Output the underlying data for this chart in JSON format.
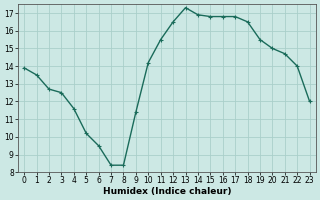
{
  "x": [
    0,
    1,
    2,
    3,
    4,
    5,
    6,
    7,
    8,
    9,
    10,
    11,
    12,
    13,
    14,
    15,
    16,
    17,
    18,
    19,
    20,
    21,
    22,
    23
  ],
  "y": [
    13.9,
    13.5,
    12.7,
    12.5,
    11.6,
    10.2,
    9.5,
    8.4,
    8.4,
    11.4,
    14.2,
    15.5,
    16.5,
    17.3,
    16.9,
    16.8,
    16.8,
    16.8,
    16.5,
    15.5,
    15.0,
    14.7,
    14.0,
    12.0
  ],
  "line_color": "#1a6b5a",
  "marker": "+",
  "marker_size": 3,
  "marker_lw": 0.8,
  "line_width": 1.0,
  "bg_color": "#cce8e4",
  "grid_color": "#aacfca",
  "xlabel": "Humidex (Indice chaleur)",
  "ylim": [
    8,
    17.5
  ],
  "xlim": [
    -0.5,
    23.5
  ],
  "yticks": [
    8,
    9,
    10,
    11,
    12,
    13,
    14,
    15,
    16,
    17
  ],
  "xticks": [
    0,
    1,
    2,
    3,
    4,
    5,
    6,
    7,
    8,
    9,
    10,
    11,
    12,
    13,
    14,
    15,
    16,
    17,
    18,
    19,
    20,
    21,
    22,
    23
  ],
  "tick_fontsize": 5.5,
  "xlabel_fontsize": 6.5,
  "xlabel_fontweight": "bold"
}
